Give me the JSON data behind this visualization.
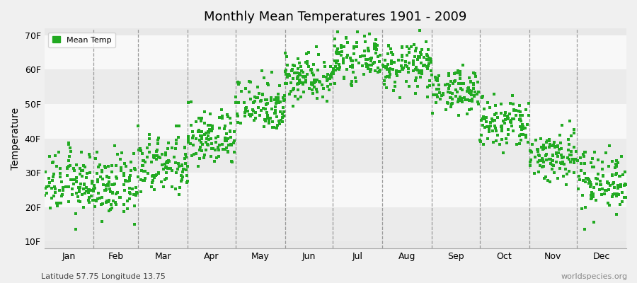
{
  "title": "Monthly Mean Temperatures 1901 - 2009",
  "ylabel": "Temperature",
  "xlabel_labels": [
    "Jan",
    "Feb",
    "Mar",
    "Apr",
    "May",
    "Jun",
    "Jul",
    "Aug",
    "Sep",
    "Oct",
    "Nov",
    "Dec"
  ],
  "subtitle_left": "Latitude 57.75 Longitude 13.75",
  "subtitle_right": "worldspecies.org",
  "legend_label": "Mean Temp",
  "marker_color": "#22aa22",
  "plot_bg_color": "#e8e8e8",
  "band_colors": [
    "#ebebeb",
    "#f8f8f8"
  ],
  "ytick_labels": [
    "10F",
    "20F",
    "30F",
    "40F",
    "50F",
    "60F",
    "70F"
  ],
  "ytick_values": [
    10,
    20,
    30,
    40,
    50,
    60,
    70
  ],
  "ylim": [
    8,
    72
  ],
  "num_years": 109,
  "monthly_means_F": [
    27,
    26,
    32,
    40,
    50,
    58,
    63,
    61,
    54,
    44,
    35,
    28
  ],
  "monthly_stds_F": [
    4.5,
    4.5,
    4.5,
    4,
    4,
    3.5,
    3,
    3.5,
    3,
    4,
    4,
    4.5
  ],
  "month_days": [
    31,
    28,
    31,
    30,
    31,
    30,
    31,
    31,
    30,
    31,
    30,
    31
  ]
}
